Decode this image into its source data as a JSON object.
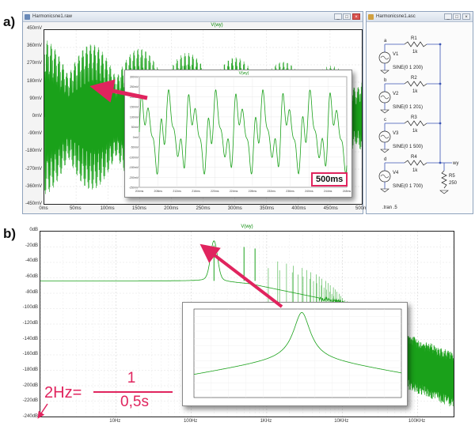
{
  "labels": {
    "a": "a)",
    "b": "b)"
  },
  "wave_window": {
    "title": "Harmonicsne1.raw",
    "plot_title": "V(wy)",
    "y_ticks": [
      "450mV",
      "360mV",
      "270mV",
      "180mV",
      "90mV",
      "0mV",
      "-90mV",
      "-180mV",
      "-270mV",
      "-360mV",
      "-450mV"
    ],
    "x_ticks": [
      "0ms",
      "50ms",
      "100ms",
      "150ms",
      "200ms",
      "250ms",
      "300ms",
      "350ms",
      "400ms",
      "450ms",
      "500ms"
    ],
    "callout": "500ms",
    "inset_title": "V(wy)",
    "inset_y_ticks": [
      "300mV",
      "250mV",
      "200mV",
      "150mV",
      "100mV",
      "50mV",
      "0mV",
      "-50mV",
      "-100mV",
      "-150mV",
      "-200mV",
      "-250mV"
    ],
    "inset_x_ticks": [
      "204ms",
      "208ms",
      "212ms",
      "216ms",
      "220ms",
      "224ms",
      "228ms",
      "232ms",
      "236ms",
      "240ms",
      "244ms",
      "248ms"
    ]
  },
  "schematic_window": {
    "title": "Harmonicsne1.asc",
    "nodes": [
      "a",
      "b",
      "c",
      "d",
      "wy"
    ],
    "sources": [
      {
        "name": "V1",
        "spec": "SINE(0 1 200)"
      },
      {
        "name": "V2",
        "spec": "SINE(0 1 201)"
      },
      {
        "name": "V3",
        "spec": "SINE(0 1 500)"
      },
      {
        "name": "V4",
        "spec": "SINE(0 1 700)"
      }
    ],
    "resistors": [
      {
        "name": "R1",
        "value": "1k"
      },
      {
        "name": "R2",
        "value": "1k"
      },
      {
        "name": "R3",
        "value": "1k"
      },
      {
        "name": "R4",
        "value": "1k"
      },
      {
        "name": "R5",
        "value": "250"
      }
    ],
    "directive": ".tran .5"
  },
  "fft": {
    "plot_title": "V(wy)",
    "y_ticks": [
      "0dB",
      "-20dB",
      "-40dB",
      "-60dB",
      "-80dB",
      "-100dB",
      "-120dB",
      "-140dB",
      "-160dB",
      "-180dB",
      "-200dB",
      "-220dB",
      "-240dB"
    ],
    "x_ticks": [
      "10Hz",
      "100Hz",
      "1KHz",
      "10KHz",
      "100KHz"
    ],
    "formula": {
      "lhs": "2Hz=",
      "num": "1",
      "den": "0,5s"
    }
  },
  "colors": {
    "trace": "#1aa11a",
    "accent": "#e0245e",
    "wire": "#3b55b5",
    "window_border": "#8fa3bd"
  },
  "chart_data": [
    {
      "type": "line",
      "title": "V(wy)",
      "xlabel": "",
      "ylabel": "",
      "xlim": [
        0,
        500
      ],
      "x_unit": "ms",
      "ylim": [
        -450,
        450
      ],
      "y_unit": "mV",
      "series": [
        {
          "values_description": "dense oscillation, envelope ~±400mV at start decaying to ~±250mV at 500ms"
        }
      ]
    },
    {
      "type": "line",
      "title": "V(wy)",
      "xscale": "log",
      "xlim": [
        1,
        300000
      ],
      "x_unit": "Hz",
      "ylim": [
        -240,
        0
      ],
      "y_unit": "dB",
      "peaks": [
        {
          "x": 200,
          "y": -18
        },
        {
          "x": 500,
          "y": -20
        },
        {
          "x": 700,
          "y": -22
        }
      ],
      "baseline_low_freq_dB": -64
    }
  ]
}
